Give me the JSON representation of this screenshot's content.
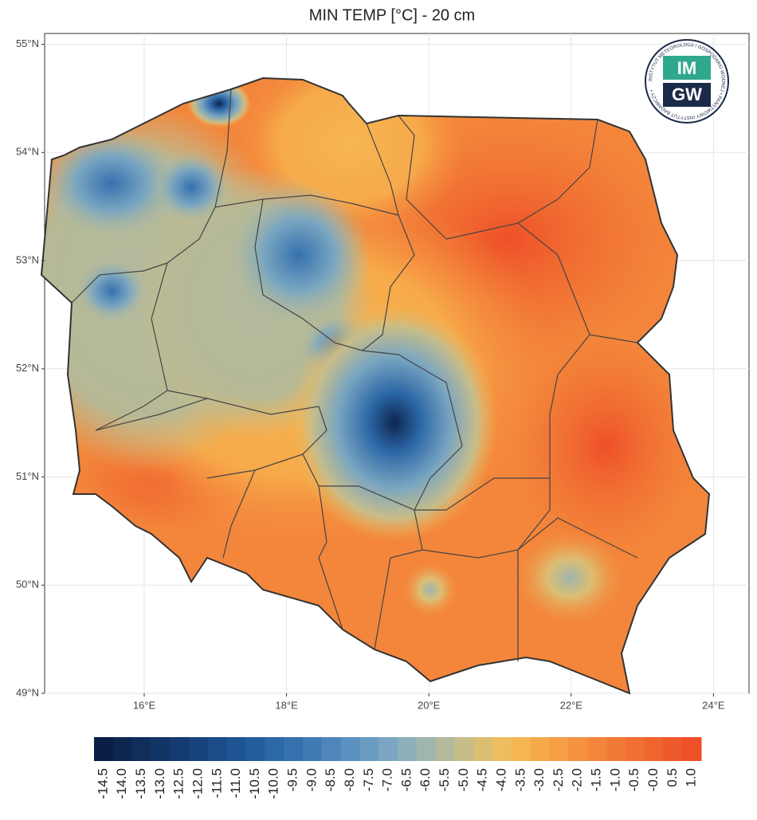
{
  "chart_data": {
    "type": "map",
    "title": "MIN TEMP [°C] - 20 cm",
    "xlim": [
      14.6,
      24.5
    ],
    "ylim": [
      49,
      55.1
    ],
    "xticks": [
      {
        "value": 16,
        "label": "16°E"
      },
      {
        "value": 18,
        "label": "18°E"
      },
      {
        "value": 20,
        "label": "20°E"
      },
      {
        "value": 22,
        "label": "22°E"
      },
      {
        "value": 24,
        "label": "24°E"
      }
    ],
    "yticks": [
      {
        "value": 49,
        "label": "49°N"
      },
      {
        "value": 50,
        "label": "50°N"
      },
      {
        "value": 51,
        "label": "51°N"
      },
      {
        "value": 52,
        "label": "52°N"
      },
      {
        "value": 53,
        "label": "53°N"
      },
      {
        "value": 54,
        "label": "54°N"
      },
      {
        "value": 55,
        "label": "55°N"
      }
    ],
    "grid": true,
    "logo": {
      "top": "IM",
      "bottom": "GW",
      "ring": "INSTYTUT METEOROLOGII I GOSPODARKI WODNEJ • PAŃSTWOWY INSTYTUT BADAWCZY •"
    },
    "colorbar": {
      "ticks": [
        -14.5,
        {
          "value": -14,
          "label": "-14.0"
        },
        -13.5,
        {
          "value": -13,
          "label": "-13.0"
        },
        -12.5,
        {
          "value": -12,
          "label": "-12.0"
        },
        -11.5,
        {
          "value": -11,
          "label": "-11.0"
        },
        -10.5,
        {
          "value": -10,
          "label": "-10.0"
        },
        -9.5,
        {
          "value": -9,
          "label": "-9.0"
        },
        -8.5,
        {
          "value": -8,
          "label": "-8.0"
        },
        -7.5,
        {
          "value": -7,
          "label": "-7.0"
        },
        -6.5,
        {
          "value": -6,
          "label": "-6.0"
        },
        -5.5,
        {
          "value": -5,
          "label": "-5.0"
        },
        -4.5,
        {
          "value": -4,
          "label": "-4.0"
        },
        -3.5,
        {
          "value": -3,
          "label": "-3.0"
        },
        -2.5,
        {
          "value": -2,
          "label": "-2.0"
        },
        -1.5,
        {
          "value": -1,
          "label": "-1.0"
        },
        -0.5,
        {
          "value": 0,
          "label": "-0.0"
        },
        0.5,
        {
          "value": 1,
          "label": "1.0"
        }
      ],
      "colors": [
        "#0a1f44",
        "#0d2650",
        "#102d5c",
        "#123467",
        "#153b72",
        "#18437d",
        "#1b4b88",
        "#1f5493",
        "#255d9d",
        "#2c67a6",
        "#3671ae",
        "#417bb5",
        "#4e86bb",
        "#5b91c0",
        "#6a9cc2",
        "#7aa6c1",
        "#8cafba",
        "#9fb6ae",
        "#b3ba9d",
        "#c8bd89",
        "#dcbe73",
        "#ecbe5f",
        "#f5b652",
        "#f7aa4a",
        "#f69e45",
        "#f49240",
        "#f3863b",
        "#f27a36",
        "#f16f32",
        "#f0642e",
        "#ef5a2b",
        "#ee5028"
      ]
    }
  }
}
